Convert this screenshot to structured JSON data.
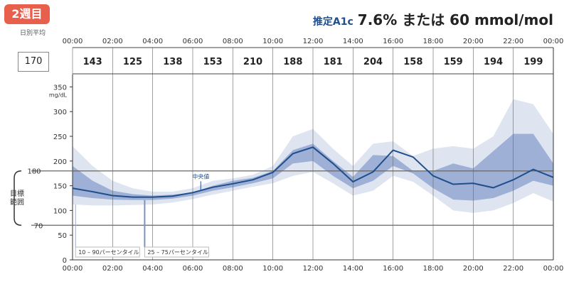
{
  "header": {
    "badge": "2週目",
    "a1c_label": "推定A1c",
    "a1c_value": "7.6% または 60 mmol/mol"
  },
  "daily_avg": {
    "label": "日別平均",
    "value": "170"
  },
  "target_label": "目標範囲",
  "colors": {
    "outer": "#dfe4f1",
    "inner": "#9eb0d5",
    "median": "#1f4e8c",
    "badge": "#e8604c"
  },
  "chart_data": {
    "type": "area",
    "title": "",
    "ylabel": "mg/dL",
    "ylim": [
      0,
      375
    ],
    "yticks": [
      0,
      50,
      100,
      150,
      200,
      250,
      300,
      350
    ],
    "target_range": [
      70,
      180
    ],
    "target_ticks": [
      "180",
      "70"
    ],
    "x_tick_labels": [
      "00:00",
      "02:00",
      "04:00",
      "06:00",
      "08:00",
      "10:00",
      "12:00",
      "14:00",
      "16:00",
      "18:00",
      "20:00",
      "22:00",
      "00:00"
    ],
    "hourly_averages": [
      143,
      125,
      138,
      153,
      210,
      188,
      181,
      204,
      158,
      159,
      194,
      199
    ],
    "median_annotation": "中央値",
    "legend": {
      "p10_90": "10 – 90パーセンタイル",
      "p25_75": "25 – 75パーセンタイル"
    },
    "x": [
      0,
      1,
      2,
      3,
      4,
      5,
      6,
      7,
      8,
      9,
      10,
      11,
      12,
      13,
      14,
      15,
      16,
      17,
      18,
      19,
      20,
      21,
      22,
      23,
      24
    ],
    "series": [
      {
        "name": "p90",
        "values": [
          230,
          190,
          160,
          145,
          138,
          138,
          145,
          160,
          165,
          172,
          190,
          250,
          265,
          225,
          190,
          235,
          240,
          210,
          225,
          230,
          225,
          250,
          325,
          315,
          255
        ]
      },
      {
        "name": "p75",
        "values": [
          190,
          160,
          140,
          133,
          130,
          132,
          136,
          150,
          160,
          166,
          180,
          222,
          235,
          200,
          168,
          212,
          210,
          180,
          180,
          195,
          185,
          220,
          255,
          255,
          195
        ]
      },
      {
        "name": "median",
        "values": [
          145,
          138,
          130,
          127,
          127,
          129,
          136,
          147,
          154,
          162,
          177,
          215,
          228,
          195,
          158,
          178,
          222,
          208,
          170,
          153,
          155,
          146,
          162,
          183,
          167
        ]
      },
      {
        "name": "p25",
        "values": [
          130,
          125,
          122,
          121,
          121,
          124,
          130,
          140,
          147,
          155,
          165,
          195,
          200,
          170,
          145,
          160,
          190,
          175,
          145,
          122,
          120,
          125,
          140,
          160,
          150
        ]
      },
      {
        "name": "p10",
        "values": [
          112,
          110,
          110,
          111,
          112,
          116,
          123,
          132,
          140,
          148,
          155,
          170,
          178,
          155,
          130,
          140,
          170,
          158,
          130,
          100,
          95,
          100,
          115,
          135,
          118
        ]
      }
    ]
  }
}
